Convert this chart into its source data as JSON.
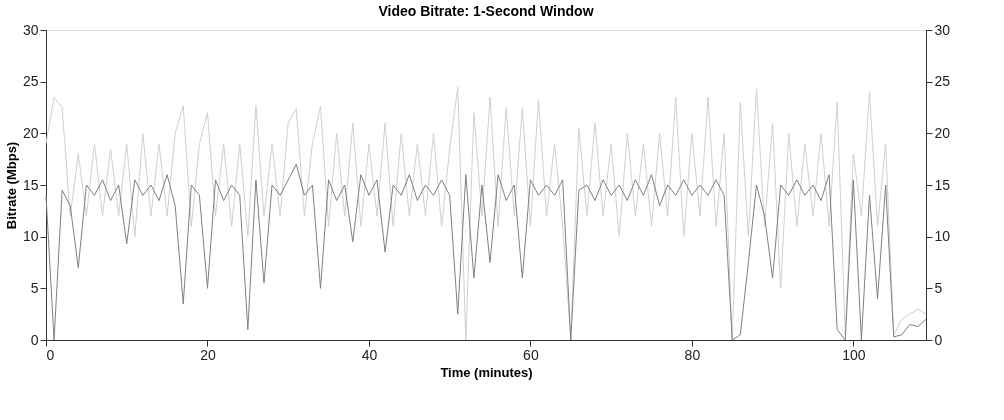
{
  "chart_data": {
    "type": "line",
    "title": "Video Bitrate: 1-Second Window",
    "xlabel": "Time (minutes)",
    "ylabel": "Bitrate (Mbps)",
    "x": [
      0,
      1,
      2,
      3,
      4,
      5,
      6,
      7,
      8,
      9,
      10,
      11,
      12,
      13,
      14,
      15,
      16,
      17,
      18,
      19,
      20,
      21,
      22,
      23,
      24,
      25,
      26,
      27,
      28,
      29,
      30,
      31,
      32,
      33,
      34,
      35,
      36,
      37,
      38,
      39,
      40,
      41,
      42,
      43,
      44,
      45,
      46,
      47,
      48,
      49,
      50,
      51,
      52,
      53,
      54,
      55,
      56,
      57,
      58,
      59,
      60,
      61,
      62,
      63,
      64,
      65,
      66,
      67,
      68,
      69,
      70,
      71,
      72,
      73,
      74,
      75,
      76,
      77,
      78,
      79,
      80,
      81,
      82,
      83,
      84,
      85,
      86,
      87,
      88,
      89,
      90,
      91,
      92,
      93,
      94,
      95,
      96,
      97,
      98,
      99,
      100,
      101,
      102,
      103,
      104,
      105,
      106,
      107,
      108,
      109
    ],
    "series": [
      {
        "color": "#d0d0d0",
        "values": [
          19,
          23.5,
          22.5,
          12,
          18,
          12,
          19,
          12,
          18.5,
          12,
          19,
          10,
          20,
          12,
          19,
          12,
          20,
          22.7,
          11,
          19,
          22,
          12,
          19,
          11,
          19,
          10,
          22.7,
          12,
          19,
          12,
          21,
          22.4,
          12,
          19,
          22.6,
          11,
          20,
          12,
          21,
          11,
          19,
          12,
          21,
          11,
          20,
          12,
          19,
          12,
          20,
          11,
          18.5,
          24.5,
          0,
          22,
          12,
          23.5,
          11,
          22.5,
          12,
          22.5,
          11,
          23.3,
          12,
          19,
          11,
          0,
          20.5,
          12,
          21,
          12,
          19,
          10,
          20,
          12,
          19,
          11,
          20,
          12,
          23.5,
          10,
          20,
          12,
          23.5,
          11,
          20,
          0,
          23,
          10,
          24.3,
          11,
          21,
          5,
          20,
          11,
          19,
          12,
          20,
          11,
          23,
          0.5,
          18,
          12,
          24,
          11,
          19,
          0.5,
          2,
          2.5,
          3,
          2.5
        ]
      },
      {
        "color": "#808080",
        "axis": "y2",
        "values": [
          14,
          0,
          14.5,
          13,
          7,
          15,
          14,
          15.5,
          13.5,
          15,
          9.3,
          15.5,
          14,
          15,
          13.5,
          16,
          13,
          3.5,
          15,
          14,
          5,
          15.5,
          13.5,
          15,
          14,
          1,
          15.5,
          5.5,
          15,
          14,
          15.5,
          17,
          14,
          15,
          5,
          15.5,
          13.5,
          15,
          9.5,
          16,
          14,
          15.5,
          8.5,
          15,
          14,
          16,
          13.5,
          15,
          14,
          15.5,
          14,
          2.5,
          16,
          6,
          15,
          7.5,
          16,
          13.5,
          15,
          6,
          15.5,
          14,
          15,
          14,
          15.5,
          0,
          14.5,
          15,
          13.5,
          15.5,
          14,
          15,
          13.5,
          15.5,
          14,
          16,
          13,
          15,
          14,
          15.5,
          14,
          15,
          14,
          15.5,
          14,
          0,
          0.5,
          7.5,
          15,
          12,
          6,
          15,
          14,
          15.5,
          14,
          15,
          13.5,
          16,
          1,
          0,
          15.5,
          0,
          14,
          4,
          15,
          0.3,
          0.5,
          1.5,
          1.3,
          2
        ]
      }
    ],
    "xlim": [
      0,
      109
    ],
    "xticks": [
      0,
      20,
      40,
      60,
      80,
      100
    ],
    "ylim": [
      0,
      30
    ],
    "yticks": [
      0,
      5,
      10,
      15,
      20,
      25,
      30
    ],
    "y2lim": [
      0,
      30
    ],
    "y2ticks": [
      0,
      5,
      10,
      15,
      20,
      25,
      30
    ],
    "grid": false
  }
}
